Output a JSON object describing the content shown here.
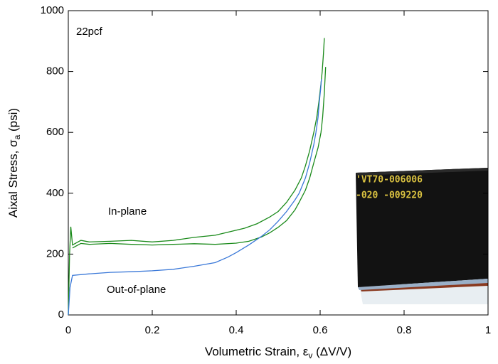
{
  "chart_data": {
    "type": "line",
    "xlabel": "Volumetric Strain, ε",
    "xlabel_sub": "v",
    "xlabel_suffix": " (ΔV/V)",
    "ylabel": "Aixal Stress, σ",
    "ylabel_sub": "a",
    "ylabel_suffix": " (psi)",
    "annotations": [
      {
        "text": "22pcf",
        "color": "#000000"
      },
      {
        "text": "In-plane",
        "color": "#1a8a1a"
      },
      {
        "text": "Out-of-plane",
        "color": "#3a78d8"
      }
    ],
    "inset_text": [
      "'VT70-006006",
      "-020 -009220"
    ],
    "xlim": [
      0,
      1
    ],
    "xticks": [
      0,
      0.2,
      0.4,
      0.6,
      0.8,
      1
    ],
    "ylim": [
      0,
      1000
    ],
    "yticks": [
      0,
      200,
      400,
      600,
      800,
      1000
    ],
    "series": [
      {
        "color": "#1a8a1a",
        "x": [
          0,
          0.003,
          0.006,
          0.01,
          0.03,
          0.05,
          0.1,
          0.15,
          0.2,
          0.25,
          0.3,
          0.35,
          0.38,
          0.42,
          0.45,
          0.48,
          0.5,
          0.52,
          0.54,
          0.555,
          0.565,
          0.575,
          0.585,
          0.592,
          0.597,
          0.602,
          0.605,
          0.608,
          0.61
        ],
        "values": [
          0,
          200,
          290,
          230,
          245,
          240,
          242,
          245,
          240,
          245,
          255,
          262,
          272,
          285,
          300,
          322,
          340,
          370,
          410,
          450,
          490,
          540,
          600,
          650,
          700,
          760,
          800,
          860,
          910
        ]
      },
      {
        "color": "#1a8a1a",
        "x": [
          0.01,
          0.03,
          0.05,
          0.1,
          0.15,
          0.2,
          0.25,
          0.3,
          0.35,
          0.4,
          0.43,
          0.46,
          0.48,
          0.5,
          0.52,
          0.54,
          0.55,
          0.565,
          0.575,
          0.585,
          0.595,
          0.602,
          0.606,
          0.61,
          0.613
        ],
        "values": [
          220,
          235,
          232,
          235,
          232,
          230,
          232,
          234,
          232,
          236,
          242,
          256,
          270,
          288,
          310,
          345,
          370,
          410,
          450,
          500,
          550,
          600,
          650,
          730,
          815
        ]
      },
      {
        "color": "#3a78d8",
        "x": [
          0,
          0.004,
          0.01,
          0.05,
          0.1,
          0.15,
          0.2,
          0.25,
          0.3,
          0.35,
          0.38,
          0.4,
          0.43,
          0.46,
          0.48,
          0.5,
          0.52,
          0.54,
          0.55,
          0.565,
          0.575,
          0.585,
          0.59,
          0.595,
          0.598,
          0.601,
          0.603
        ],
        "values": [
          0,
          90,
          130,
          135,
          140,
          142,
          145,
          150,
          160,
          172,
          190,
          205,
          230,
          258,
          280,
          308,
          340,
          378,
          400,
          450,
          500,
          560,
          600,
          650,
          700,
          740,
          775
        ]
      }
    ]
  }
}
